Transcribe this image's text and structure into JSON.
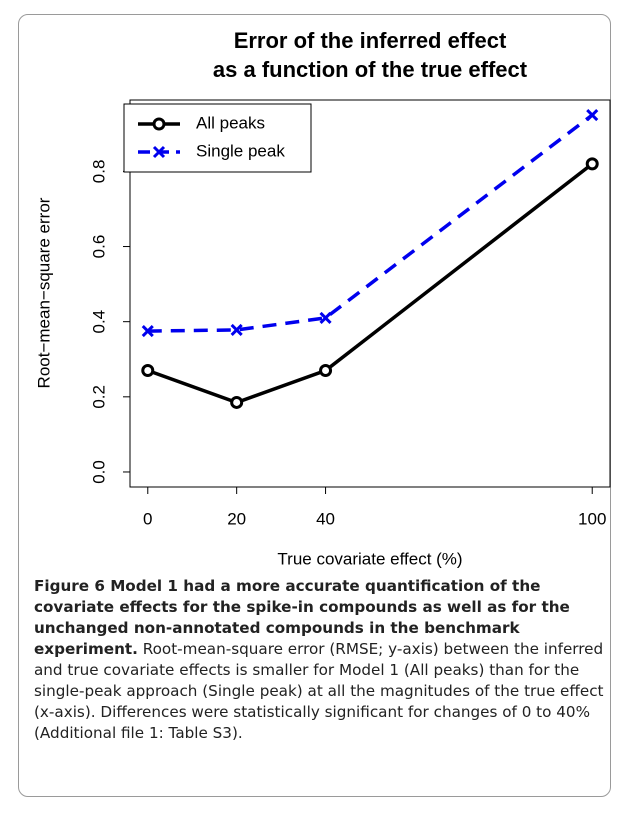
{
  "chart_data": {
    "type": "line",
    "title": [
      "Error of the inferred effect",
      "as a function of the true effect"
    ],
    "x_label": "True covariate effect (%)",
    "y_label": "Root−mean−square error",
    "x": [
      0,
      20,
      40,
      100
    ],
    "series": [
      {
        "name": "All peaks",
        "color": "#000000",
        "dash": false,
        "marker": "circle",
        "values": [
          0.27,
          0.185,
          0.27,
          0.82
        ]
      },
      {
        "name": "Single peak",
        "color": "#0000ee",
        "dash": true,
        "marker": "cross",
        "values": [
          0.375,
          0.378,
          0.41,
          0.95
        ]
      }
    ],
    "xlim": [
      -4,
      104
    ],
    "xticks": [
      0,
      20,
      40,
      100
    ],
    "ylim": [
      -0.04,
      0.99
    ],
    "yticks": [
      {
        "value": 0,
        "label": "0.0"
      },
      0.2,
      0.4,
      0.6,
      0.8
    ],
    "legend": "top-left"
  },
  "caption": {
    "bold": "Figure 6 Model 1 had a more accurate quantification of the covariate effects for the spike-in compounds as well as for the unchanged non-annotated compounds in the benchmark experiment.",
    "text": "Root-mean-square error (RMSE; y-axis) between the inferred and true covariate effects is smaller for Model 1 (All peaks) than for the single-peak approach (Single peak) at all the magnitudes of the true effect (x-axis). Differences were statistically significant for changes of 0 to 40% (Additional file 1: Table S3)."
  }
}
